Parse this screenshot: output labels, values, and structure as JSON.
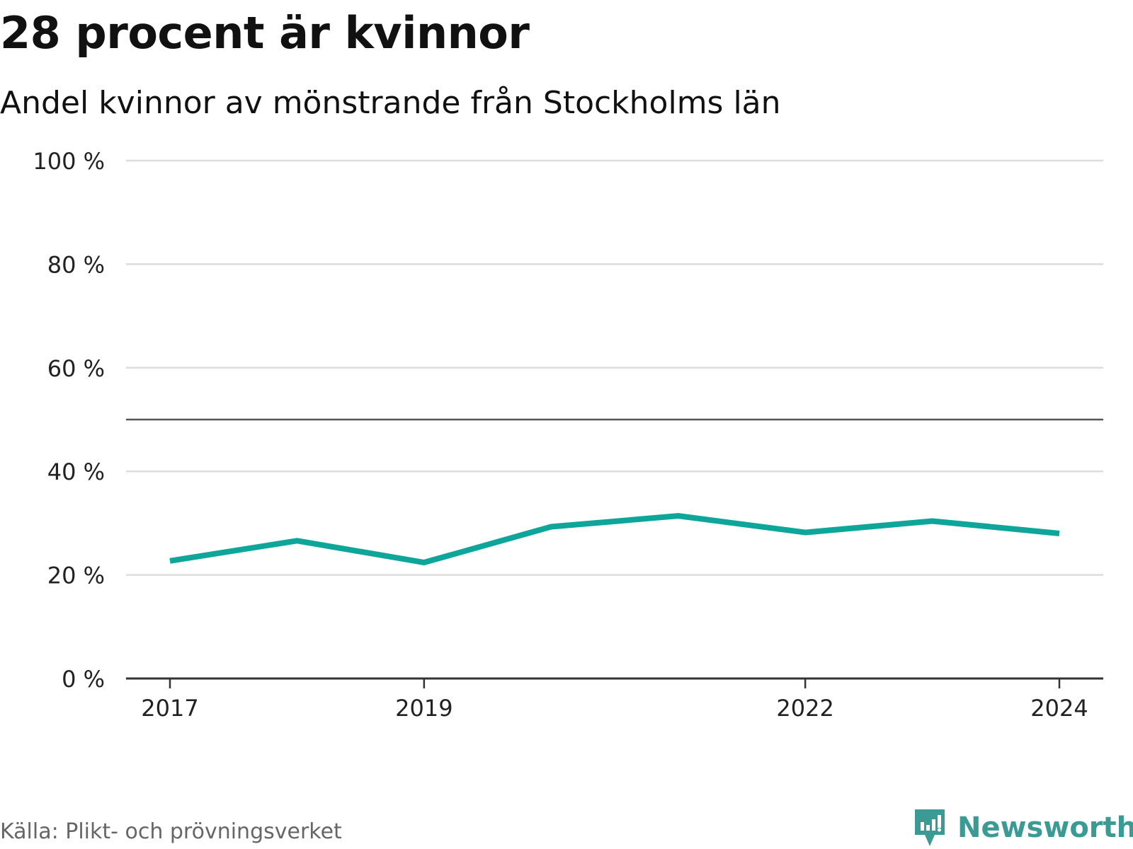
{
  "header": {
    "title": "28 procent är kvinnor",
    "subtitle": "Andel kvinnor av mönstrande från Stockholms län"
  },
  "footer": {
    "source": "Källa: Plikt- och prövningsverket",
    "brand": "Newsworthy",
    "brand_icon": "chart-logo-icon"
  },
  "colors": {
    "series": "#0ea59b",
    "grid": "#dddddd",
    "reference": "#555555",
    "axis": "#333333",
    "brand": "#3c9a94"
  },
  "chart_data": {
    "type": "line",
    "title": "28 procent är kvinnor",
    "subtitle": "Andel kvinnor av mönstrande från Stockholms län",
    "xlabel": "",
    "ylabel": "",
    "x": [
      2017,
      2018,
      2019,
      2020,
      2021,
      2022,
      2023,
      2024
    ],
    "x_tick_labels": [
      "2017",
      "2019",
      "2022",
      "2024"
    ],
    "x_tick_values": [
      2017,
      2019,
      2022,
      2024
    ],
    "y_ticks": [
      0,
      20,
      40,
      60,
      80,
      100
    ],
    "y_tick_labels": [
      "0 %",
      "20 %",
      "40 %",
      "60 %",
      "80 %",
      "100 %"
    ],
    "ylim": [
      0,
      100
    ],
    "reference_line": 50,
    "grid": true,
    "series": [
      {
        "name": "Andel kvinnor",
        "values": [
          22.7,
          26.6,
          22.4,
          29.3,
          31.4,
          28.2,
          30.4,
          28.0
        ]
      }
    ]
  }
}
